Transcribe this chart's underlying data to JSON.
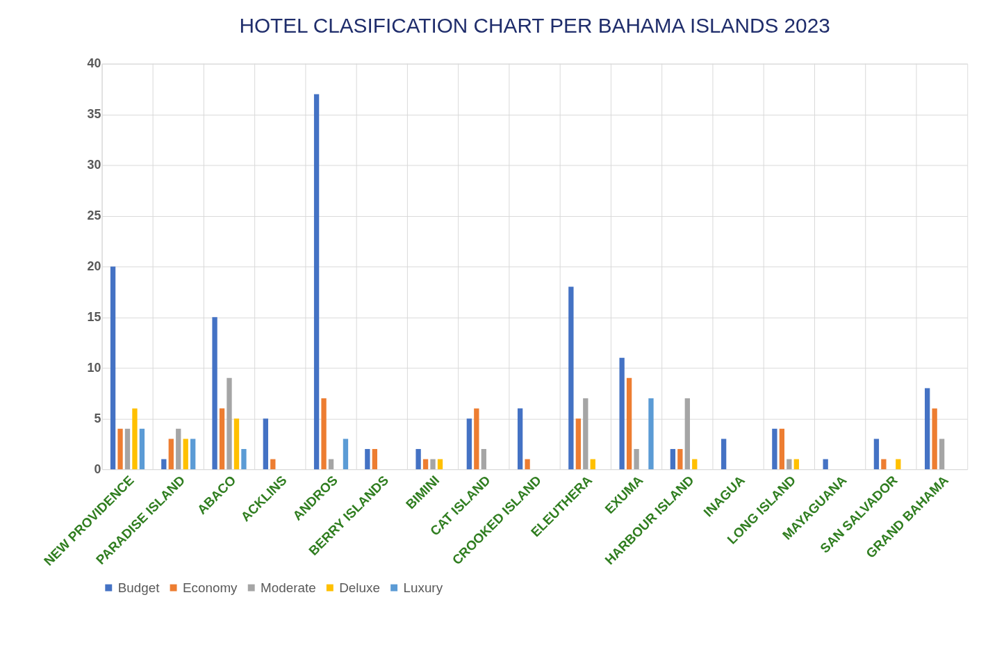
{
  "chart_data": {
    "type": "bar",
    "title": "HOTEL CLASIFICATION CHART PER BAHAMA ISLANDS 2023",
    "categories": [
      "NEW PROVIDENCE",
      "PARADISE ISLAND",
      "ABACO",
      "ACKLINS",
      "ANDROS",
      "BERRY ISLANDS",
      "BIMINI",
      "CAT ISLAND",
      "CROOKED ISLAND",
      "ELEUTHERA",
      "EXUMA",
      "HARBOUR ISLAND",
      "INAGUA",
      "LONG ISLAND",
      "MAYAGUANA",
      "SAN SALVADOR",
      "GRAND BAHAMA"
    ],
    "series": [
      {
        "name": "Budget",
        "color": "#4472c4",
        "values": [
          20,
          1,
          15,
          5,
          37,
          2,
          2,
          5,
          6,
          18,
          11,
          2,
          3,
          4,
          1,
          3,
          8
        ]
      },
      {
        "name": "Economy",
        "color": "#ed7d31",
        "values": [
          4,
          3,
          6,
          1,
          7,
          2,
          1,
          6,
          1,
          5,
          9,
          2,
          0,
          4,
          0,
          1,
          6
        ]
      },
      {
        "name": "Moderate",
        "color": "#a5a5a5",
        "values": [
          4,
          4,
          9,
          0,
          1,
          0,
          1,
          2,
          0,
          7,
          2,
          7,
          0,
          1,
          0,
          0,
          3
        ]
      },
      {
        "name": "Deluxe",
        "color": "#ffc000",
        "values": [
          6,
          3,
          5,
          0,
          0,
          0,
          1,
          0,
          0,
          1,
          0,
          1,
          0,
          1,
          0,
          1,
          0
        ]
      },
      {
        "name": "Luxury",
        "color": "#5b9bd5",
        "values": [
          4,
          3,
          2,
          0,
          3,
          0,
          0,
          0,
          0,
          0,
          7,
          0,
          0,
          0,
          0,
          0,
          0
        ]
      }
    ],
    "ylim": [
      0,
      40
    ],
    "yticks": [
      0,
      5,
      10,
      15,
      20,
      25,
      30,
      35,
      40
    ],
    "grid": true,
    "legend": "bottom"
  }
}
